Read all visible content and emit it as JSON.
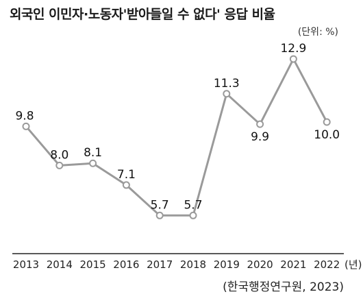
{
  "header": {
    "title": "외국인 이민자·노동자'받아들일 수 없다' 응답 비율",
    "unit": "(단위: %)"
  },
  "footer": {
    "source": "(한국행정연구원, 2023)"
  },
  "chart_data": {
    "type": "line",
    "title": "외국인 이민자·노동자'받아들일 수 없다' 응답 비율",
    "x_unit": "(년)",
    "categories": [
      "2013",
      "2014",
      "2015",
      "2016",
      "2017",
      "2018",
      "2019",
      "2020",
      "2021",
      "2022"
    ],
    "values": [
      9.8,
      8.0,
      8.1,
      7.1,
      5.7,
      5.7,
      11.3,
      9.9,
      12.9,
      10.0
    ],
    "data_labels": [
      "9.8",
      "8.0",
      "8.1",
      "7.1",
      "5.7",
      "5.7",
      "11.3",
      "9.9",
      "12.9",
      "10.0"
    ],
    "ylim": [
      0,
      14
    ],
    "grid": false,
    "line_color": "#9a9a9a",
    "marker_fill": "#ffffff"
  }
}
